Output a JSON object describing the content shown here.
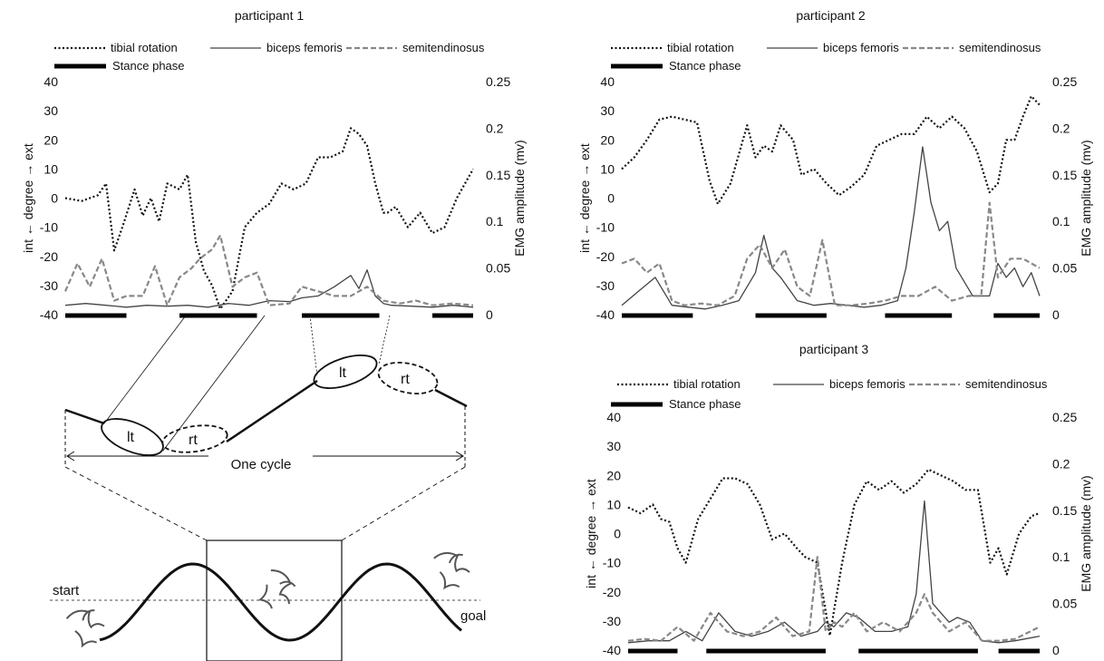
{
  "chart_data": [
    {
      "type": "line",
      "title": "participant 1",
      "ylabel_left": "int ← degree → ext",
      "ylabel_right": "EMG amplitude (mv)",
      "ylim_left": [
        -40,
        40
      ],
      "ylim_right": [
        0,
        0.25
      ],
      "yticks_left": [
        "40",
        "30",
        "20",
        "10",
        "0",
        "-10",
        "-20",
        "-30",
        "-40"
      ],
      "yticks_right": [
        "0.25",
        "0.2",
        "0.15",
        "0.1",
        "0.05",
        "0"
      ],
      "legend": [
        "tibial rotation",
        "biceps femoris",
        "semitendinosus",
        "Stance phase"
      ],
      "stance_phase": [
        [
          0,
          0.15
        ],
        [
          0.28,
          0.47
        ],
        [
          0.58,
          0.77
        ],
        [
          0.9,
          1.0
        ]
      ],
      "series": [
        {
          "name": "tibial rotation",
          "axis": "left",
          "x": [
            0,
            0.04,
            0.08,
            0.1,
            0.12,
            0.14,
            0.17,
            0.19,
            0.21,
            0.23,
            0.25,
            0.28,
            0.3,
            0.32,
            0.34,
            0.36,
            0.38,
            0.41,
            0.44,
            0.47,
            0.5,
            0.53,
            0.56,
            0.59,
            0.62,
            0.65,
            0.68,
            0.7,
            0.72,
            0.74,
            0.76,
            0.78,
            0.79,
            0.81,
            0.84,
            0.87,
            0.9,
            0.93,
            0.96,
            1.0
          ],
          "values": [
            0,
            -1,
            1,
            5,
            -18,
            -10,
            3,
            -6,
            0,
            -8,
            5,
            3,
            8,
            -15,
            -25,
            -30,
            -38,
            -32,
            -10,
            -5,
            -2,
            5,
            3,
            5,
            14,
            14,
            16,
            24,
            22,
            18,
            5,
            -5,
            -5,
            -3,
            -10,
            -5,
            -12,
            -10,
            0,
            10
          ]
        },
        {
          "name": "biceps femoris",
          "axis": "right",
          "x": [
            0,
            0.05,
            0.1,
            0.15,
            0.2,
            0.25,
            0.3,
            0.35,
            0.4,
            0.45,
            0.5,
            0.55,
            0.58,
            0.62,
            0.66,
            0.7,
            0.72,
            0.74,
            0.76,
            0.78,
            0.8,
            0.85,
            0.9,
            0.95,
            1.0
          ],
          "values": [
            0.01,
            0.012,
            0.01,
            0.008,
            0.01,
            0.009,
            0.01,
            0.008,
            0.012,
            0.01,
            0.015,
            0.014,
            0.018,
            0.02,
            0.03,
            0.042,
            0.028,
            0.048,
            0.02,
            0.012,
            0.01,
            0.009,
            0.008,
            0.01,
            0.008
          ]
        },
        {
          "name": "semitendinosus",
          "axis": "right",
          "x": [
            0,
            0.03,
            0.06,
            0.09,
            0.12,
            0.15,
            0.19,
            0.22,
            0.25,
            0.28,
            0.31,
            0.33,
            0.36,
            0.38,
            0.41,
            0.44,
            0.47,
            0.5,
            0.55,
            0.58,
            0.62,
            0.66,
            0.7,
            0.74,
            0.78,
            0.82,
            0.86,
            0.9,
            0.95,
            1.0
          ],
          "values": [
            0.025,
            0.055,
            0.03,
            0.06,
            0.015,
            0.02,
            0.02,
            0.052,
            0.01,
            0.04,
            0.05,
            0.06,
            0.07,
            0.085,
            0.03,
            0.04,
            0.045,
            0.01,
            0.012,
            0.03,
            0.025,
            0.02,
            0.02,
            0.03,
            0.015,
            0.012,
            0.015,
            0.01,
            0.012,
            0.01
          ]
        }
      ]
    },
    {
      "type": "line",
      "title": "participant 2",
      "ylabel_left": "int ← degree → ext",
      "ylabel_right": "EMG amplitude (mv)",
      "ylim_left": [
        -40,
        40
      ],
      "ylim_right": [
        0,
        0.25
      ],
      "yticks_left": [
        "40",
        "30",
        "20",
        "10",
        "0",
        "-10",
        "-20",
        "-30",
        "-40"
      ],
      "yticks_right": [
        "0.25",
        "0.2",
        "0.15",
        "0.1",
        "0.05",
        "0"
      ],
      "legend": [
        "tibial rotation",
        "biceps femoris",
        "semitendinosus",
        "Stance phase"
      ],
      "stance_phase": [
        [
          0,
          0.17
        ],
        [
          0.32,
          0.49
        ],
        [
          0.63,
          0.79
        ],
        [
          0.89,
          1.0
        ]
      ],
      "series": [
        {
          "name": "tibial rotation",
          "axis": "left",
          "x": [
            0,
            0.03,
            0.06,
            0.09,
            0.12,
            0.15,
            0.18,
            0.21,
            0.23,
            0.26,
            0.28,
            0.3,
            0.32,
            0.34,
            0.36,
            0.38,
            0.41,
            0.43,
            0.46,
            0.49,
            0.52,
            0.55,
            0.58,
            0.61,
            0.64,
            0.67,
            0.7,
            0.73,
            0.76,
            0.79,
            0.82,
            0.85,
            0.88,
            0.9,
            0.92,
            0.94,
            0.96,
            0.98,
            1.0
          ],
          "values": [
            10,
            14,
            20,
            27,
            28,
            27,
            26,
            6,
            -2,
            5,
            15,
            25,
            14,
            18,
            16,
            25,
            20,
            8,
            10,
            5,
            1,
            4,
            8,
            18,
            20,
            22,
            22,
            28,
            24,
            28,
            24,
            16,
            2,
            5,
            20,
            20,
            28,
            35,
            32
          ]
        },
        {
          "name": "biceps femoris",
          "axis": "right",
          "x": [
            0,
            0.04,
            0.08,
            0.12,
            0.16,
            0.2,
            0.24,
            0.28,
            0.32,
            0.34,
            0.36,
            0.38,
            0.42,
            0.46,
            0.5,
            0.54,
            0.58,
            0.62,
            0.66,
            0.68,
            0.7,
            0.72,
            0.74,
            0.76,
            0.78,
            0.8,
            0.84,
            0.88,
            0.9,
            0.92,
            0.94,
            0.96,
            0.98,
            1.0
          ],
          "values": [
            0.01,
            0.025,
            0.04,
            0.01,
            0.008,
            0.006,
            0.01,
            0.015,
            0.045,
            0.085,
            0.05,
            0.04,
            0.015,
            0.01,
            0.012,
            0.01,
            0.008,
            0.01,
            0.015,
            0.05,
            0.11,
            0.18,
            0.12,
            0.09,
            0.1,
            0.05,
            0.02,
            0.02,
            0.055,
            0.04,
            0.05,
            0.03,
            0.045,
            0.02
          ]
        },
        {
          "name": "semitendinosus",
          "axis": "right",
          "x": [
            0,
            0.03,
            0.06,
            0.09,
            0.12,
            0.15,
            0.19,
            0.23,
            0.27,
            0.3,
            0.33,
            0.36,
            0.39,
            0.42,
            0.45,
            0.48,
            0.51,
            0.55,
            0.59,
            0.63,
            0.67,
            0.71,
            0.75,
            0.79,
            0.83,
            0.86,
            0.88,
            0.9,
            0.93,
            0.96,
            1.0
          ],
          "values": [
            0.055,
            0.06,
            0.045,
            0.055,
            0.015,
            0.01,
            0.012,
            0.01,
            0.02,
            0.06,
            0.075,
            0.05,
            0.07,
            0.03,
            0.02,
            0.08,
            0.01,
            0.01,
            0.012,
            0.015,
            0.02,
            0.02,
            0.03,
            0.015,
            0.02,
            0.02,
            0.12,
            0.04,
            0.06,
            0.06,
            0.05
          ]
        }
      ]
    },
    {
      "type": "line",
      "title": "participant 3",
      "ylabel_left": "int ← degree → ext",
      "ylabel_right": "EMG amplitude (mv)",
      "ylim_left": [
        -40,
        40
      ],
      "ylim_right": [
        0,
        0.25
      ],
      "yticks_left": [
        "40",
        "30",
        "20",
        "10",
        "0",
        "-10",
        "-20",
        "-30",
        "-40"
      ],
      "yticks_right": [
        "0.25",
        "0.2",
        "0.15",
        "0.1",
        "0.05",
        "0"
      ],
      "legend": [
        "tibial rotation",
        "biceps femoris",
        "semitendinosus",
        "Stance phase"
      ],
      "stance_phase": [
        [
          0,
          0.12
        ],
        [
          0.19,
          0.48
        ],
        [
          0.56,
          0.85
        ],
        [
          0.9,
          1.0
        ]
      ],
      "series": [
        {
          "name": "tibial rotation",
          "axis": "left",
          "x": [
            0,
            0.03,
            0.06,
            0.08,
            0.1,
            0.12,
            0.14,
            0.17,
            0.2,
            0.23,
            0.26,
            0.29,
            0.32,
            0.35,
            0.38,
            0.41,
            0.43,
            0.46,
            0.49,
            0.52,
            0.55,
            0.58,
            0.61,
            0.64,
            0.67,
            0.7,
            0.73,
            0.76,
            0.79,
            0.82,
            0.85,
            0.88,
            0.9,
            0.92,
            0.95,
            0.98,
            1.0
          ],
          "values": [
            9,
            7,
            10,
            5,
            4,
            -5,
            -10,
            5,
            12,
            19,
            19,
            17,
            10,
            -2,
            0,
            -5,
            -8,
            -10,
            -35,
            -10,
            10,
            18,
            15,
            18,
            14,
            17,
            22,
            20,
            18,
            15,
            15,
            -10,
            -5,
            -14,
            0,
            6,
            7
          ]
        },
        {
          "name": "biceps femoris",
          "axis": "right",
          "x": [
            0,
            0.05,
            0.1,
            0.14,
            0.18,
            0.22,
            0.26,
            0.3,
            0.34,
            0.38,
            0.42,
            0.46,
            0.48,
            0.5,
            0.53,
            0.56,
            0.6,
            0.64,
            0.68,
            0.7,
            0.72,
            0.74,
            0.76,
            0.78,
            0.8,
            0.83,
            0.86,
            0.9,
            0.94,
            1.0
          ],
          "values": [
            0.008,
            0.01,
            0.01,
            0.02,
            0.01,
            0.04,
            0.02,
            0.015,
            0.02,
            0.03,
            0.015,
            0.02,
            0.03,
            0.025,
            0.04,
            0.035,
            0.02,
            0.02,
            0.025,
            0.06,
            0.16,
            0.05,
            0.04,
            0.03,
            0.035,
            0.03,
            0.01,
            0.008,
            0.01,
            0.015
          ]
        },
        {
          "name": "semitendinosus",
          "axis": "right",
          "x": [
            0,
            0.04,
            0.08,
            0.12,
            0.16,
            0.2,
            0.24,
            0.28,
            0.32,
            0.36,
            0.4,
            0.44,
            0.46,
            0.48,
            0.5,
            0.52,
            0.55,
            0.58,
            0.62,
            0.66,
            0.7,
            0.72,
            0.74,
            0.78,
            0.82,
            0.86,
            0.9,
            0.94,
            1.0
          ],
          "values": [
            0.01,
            0.012,
            0.01,
            0.025,
            0.01,
            0.04,
            0.02,
            0.015,
            0.02,
            0.035,
            0.015,
            0.02,
            0.1,
            0.02,
            0.03,
            0.025,
            0.04,
            0.02,
            0.03,
            0.02,
            0.04,
            0.06,
            0.04,
            0.02,
            0.03,
            0.01,
            0.01,
            0.012,
            0.025
          ]
        }
      ]
    }
  ],
  "diagram": {
    "lt_label": "lt",
    "rt_label": "rt",
    "cycle_label": "One cycle",
    "start_label": "start",
    "goal_label": "goal"
  }
}
